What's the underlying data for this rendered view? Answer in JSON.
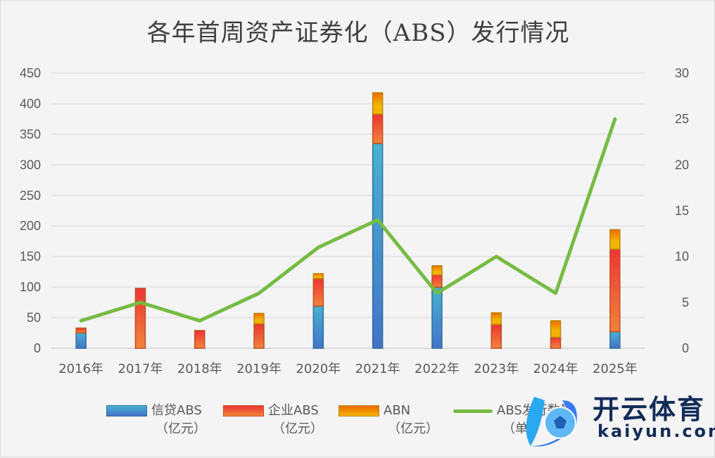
{
  "chart_data": {
    "type": "bar",
    "title": "各年首周资产证券化（ABS）发行情况",
    "categories": [
      "2016年",
      "2017年",
      "2018年",
      "2019年",
      "2020年",
      "2021年",
      "2022年",
      "2023年",
      "2024年",
      "2025年"
    ],
    "stacked": true,
    "series": [
      {
        "name": "信贷ABS",
        "unit": "（亿元）",
        "type": "bar",
        "axis": "left",
        "color": "#4aaed0",
        "values": [
          25,
          0,
          0,
          0,
          69,
          335,
          100,
          0,
          0,
          27
        ]
      },
      {
        "name": "企业ABS",
        "unit": "（亿元）",
        "type": "bar",
        "axis": "left",
        "color": "#ee5a35",
        "values": [
          8,
          98,
          29,
          40,
          45,
          48,
          20,
          39,
          18,
          135
        ]
      },
      {
        "name": "ABN",
        "unit": "（亿元）",
        "type": "bar",
        "axis": "left",
        "color": "#f2b400",
        "values": [
          0,
          0,
          0,
          17,
          8,
          35,
          15,
          19,
          27,
          32
        ]
      },
      {
        "name": "ABS发行数量",
        "unit": "（单）",
        "type": "line",
        "axis": "right",
        "color": "#76bc43",
        "values": [
          3,
          5,
          3,
          6,
          11,
          14,
          6,
          10,
          6,
          25
        ]
      }
    ],
    "ylim": [
      0,
      450
    ],
    "yticks": [
      "0",
      "50",
      "100",
      "150",
      "200",
      "250",
      "300",
      "350",
      "400",
      "450"
    ],
    "y2lim": [
      0,
      30
    ],
    "y2ticks": [
      "0",
      "5",
      "10",
      "15",
      "20",
      "25",
      "30"
    ],
    "grid": true,
    "legend": "bottom"
  },
  "watermark": {
    "cn": "开云体育",
    "en": "kaiyun.com"
  }
}
